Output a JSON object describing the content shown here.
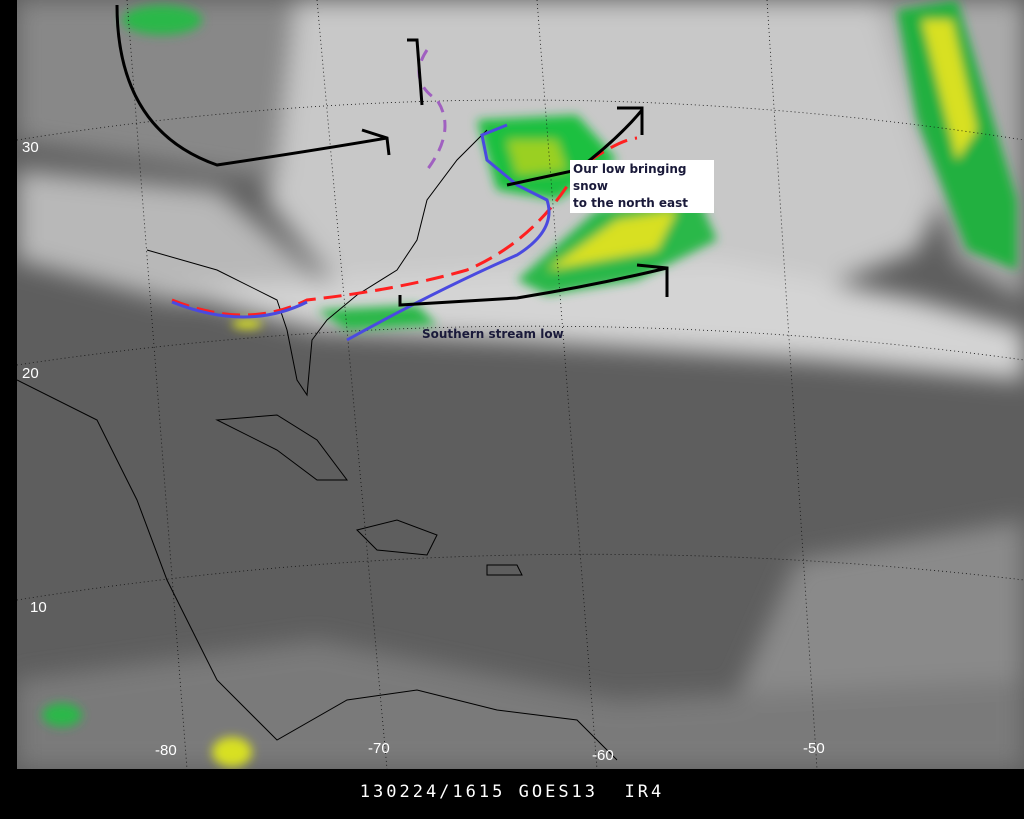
{
  "caption": {
    "date_time": "130224/1615",
    "satellite": "GOES13",
    "channel": "IR4"
  },
  "latitude_labels": [
    "30",
    "20",
    "10"
  ],
  "longitude_labels": [
    "-80",
    "-70",
    "-60",
    "-50"
  ],
  "annotations": {
    "northeast_low_line1": "Our low bringing snow",
    "northeast_low_line2": "to the north east",
    "southern_low": "Southern stream low"
  },
  "colors": {
    "background": "#5e5e5e",
    "cold_front": "#ff2020",
    "trough": "#4a4ae0",
    "jet_arrows": "#000000",
    "boundary": "#a060c0",
    "precip_green": "#1ec040",
    "precip_yellow": "#d8e020"
  }
}
